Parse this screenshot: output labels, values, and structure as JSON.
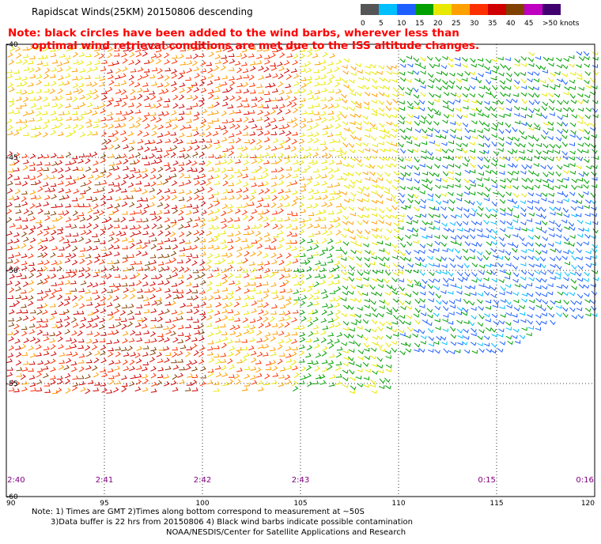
{
  "title": "Rapidscat Winds(25KM) 20150806 descending",
  "note": {
    "line1": "Note: black circles have been added to the wind barbs, wherever less than",
    "line2": "optimal wind retrieval conditions are met due to the ISS altitude changes."
  },
  "colorbar": {
    "colors": [
      "#555555",
      "#00bfff",
      "#1e5fff",
      "#00a000",
      "#e8e800",
      "#ffa000",
      "#ff3000",
      "#d00000",
      "#804000",
      "#c000c0",
      "#400070"
    ],
    "labels": [
      "0",
      "5",
      "10",
      "15",
      "20",
      "25",
      "30",
      "35",
      "40",
      "45",
      ">50 knots"
    ]
  },
  "map": {
    "lon_range": [
      90,
      120
    ],
    "lat_range": [
      -40,
      -60
    ],
    "lon_ticks": [
      "90",
      "95",
      "100",
      "105",
      "110",
      "115",
      "120"
    ],
    "lat_ticks": [
      "-40",
      "-45",
      "-50",
      "-55",
      "-60"
    ],
    "time_labels": [
      {
        "text": "2:40",
        "lon": 90.5
      },
      {
        "text": "2:41",
        "lon": 95
      },
      {
        "text": "2:42",
        "lon": 100
      },
      {
        "text": "2:43",
        "lon": 105
      },
      {
        "text": "0:15",
        "lon": 114.5
      },
      {
        "text": "0:16",
        "lon": 119.5
      }
    ]
  },
  "footer": {
    "line1": "Note: 1) Times are GMT 2)Times along bottom correspond to measurement at ~50S",
    "line2": "3)Data buffer is 22 hrs from 20150806 4) Black wind barbs indicate possible contamination",
    "line3": "NOAA/NESDIS/Center for Satellite Applications and Research"
  }
}
